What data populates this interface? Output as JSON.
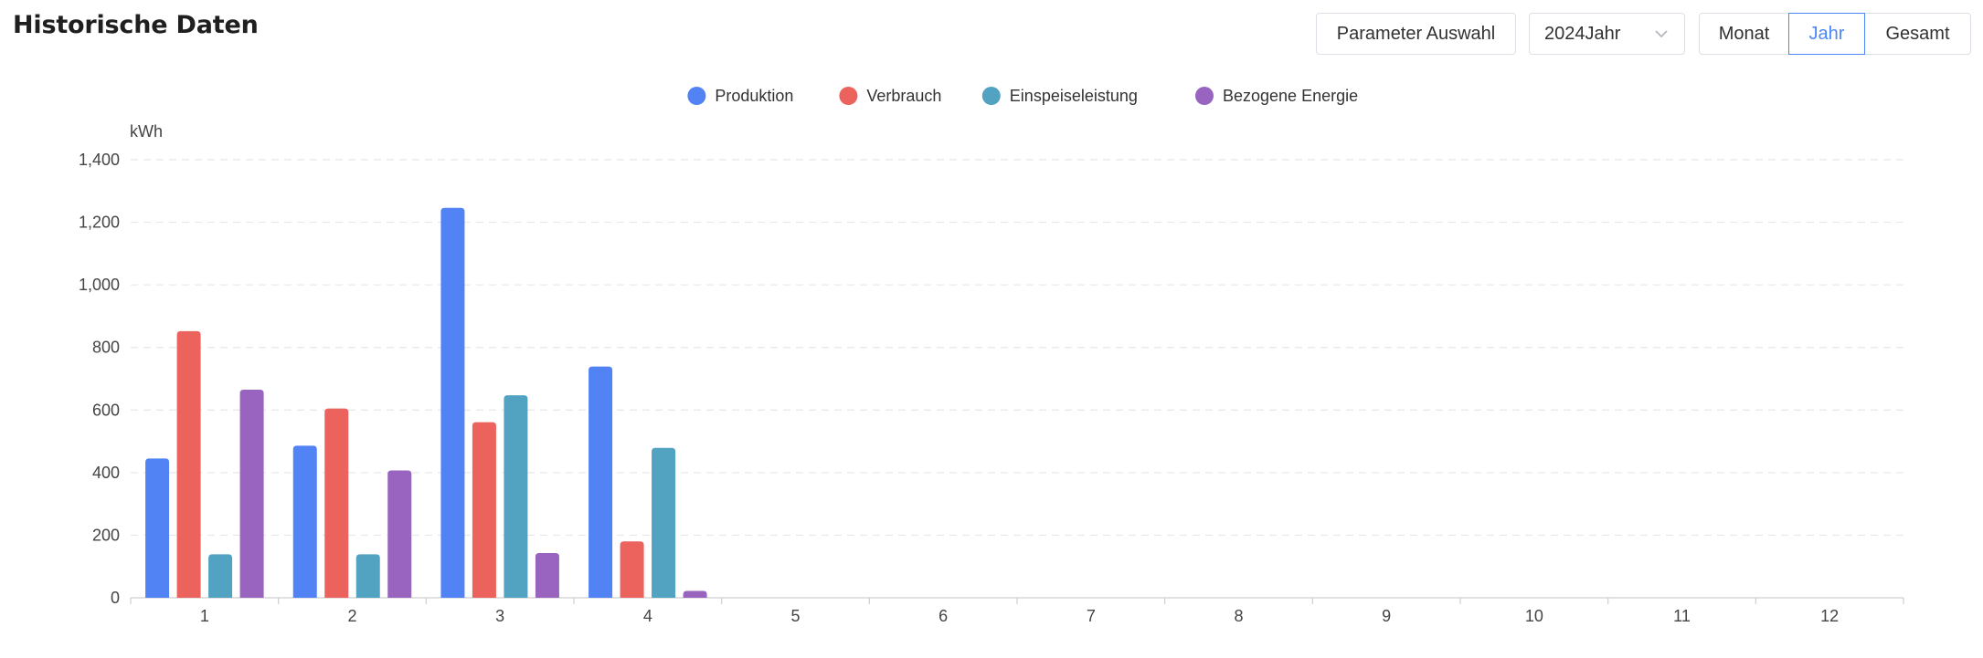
{
  "header": {
    "title": "Historische Daten",
    "parameter_button": "Parameter Auswahl",
    "year_select": {
      "value": "2024Jahr"
    },
    "period_tabs": [
      {
        "label": "Monat",
        "active": false
      },
      {
        "label": "Jahr",
        "active": true
      },
      {
        "label": "Gesamt",
        "active": false
      }
    ]
  },
  "chart_data": {
    "type": "bar",
    "ylabel": "kWh",
    "xlabel": "",
    "ylim": [
      0,
      1400
    ],
    "yticks": [
      0,
      200,
      400,
      600,
      800,
      1000,
      1200,
      1400
    ],
    "ytick_labels": [
      "0",
      "200",
      "400",
      "600",
      "800",
      "1,000",
      "1,200",
      "1,400"
    ],
    "categories": [
      "1",
      "2",
      "3",
      "4",
      "5",
      "6",
      "7",
      "8",
      "9",
      "10",
      "11",
      "12"
    ],
    "grid": true,
    "legend_position": "top-center",
    "series": [
      {
        "name": "Produktion",
        "color": "#5183f5",
        "values": [
          445,
          486,
          1246,
          739,
          0,
          0,
          0,
          0,
          0,
          0,
          0,
          0
        ]
      },
      {
        "name": "Verbrauch",
        "color": "#ec625d",
        "values": [
          852,
          605,
          561,
          180,
          0,
          0,
          0,
          0,
          0,
          0,
          0,
          0
        ]
      },
      {
        "name": "Einspeiseleistung",
        "color": "#52a2c2",
        "values": [
          139,
          139,
          647,
          479,
          0,
          0,
          0,
          0,
          0,
          0,
          0,
          0
        ]
      },
      {
        "name": "Bezogene Energie",
        "color": "#9864bf",
        "values": [
          665,
          407,
          143,
          22,
          0,
          0,
          0,
          0,
          0,
          0,
          0,
          0
        ]
      }
    ]
  }
}
